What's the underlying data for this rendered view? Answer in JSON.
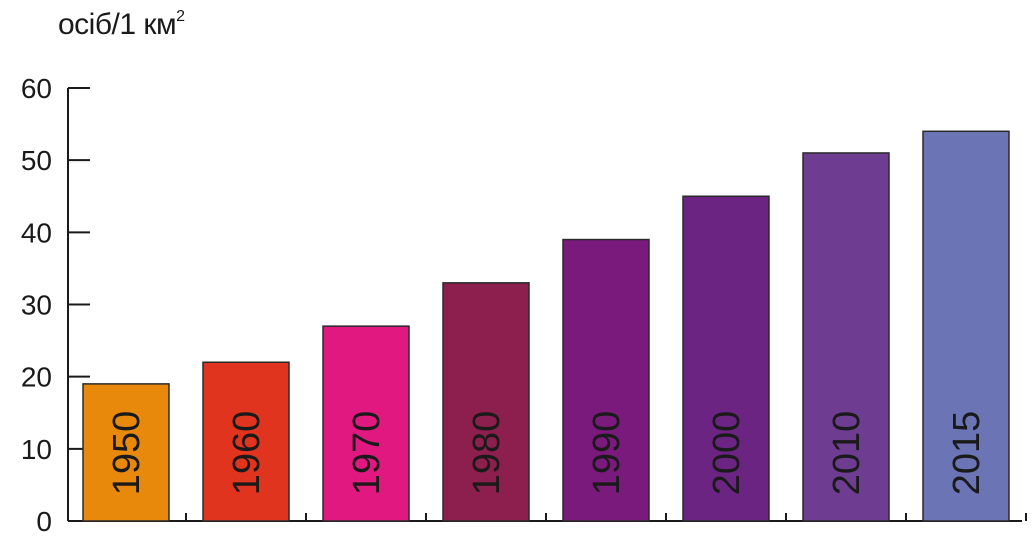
{
  "chart_data": {
    "type": "bar",
    "unit_label": "осіб/1 км",
    "unit_superscript": "2",
    "categories": [
      "1950",
      "1960",
      "1970",
      "1980",
      "1990",
      "2000",
      "2010",
      "2015"
    ],
    "values": [
      19,
      22,
      27,
      33,
      39,
      45,
      51,
      54
    ],
    "bar_colors": [
      "#e8890c",
      "#e0341e",
      "#e0187f",
      "#8c1f4d",
      "#7a1a7d",
      "#6b2482",
      "#6e3d92",
      "#6b74b5"
    ],
    "label_colors": [
      "#1a1a1a",
      "#1a1a1a",
      "#1a1a1a",
      "#1a1a1a",
      "#1a1a1a",
      "#1a1a1a",
      "#1a1a1a",
      "#1a1a1a"
    ],
    "ylim": [
      0,
      60
    ],
    "yticks": [
      "0",
      "10",
      "20",
      "30",
      "40",
      "50",
      "60"
    ],
    "grid": false,
    "legend": "none"
  }
}
